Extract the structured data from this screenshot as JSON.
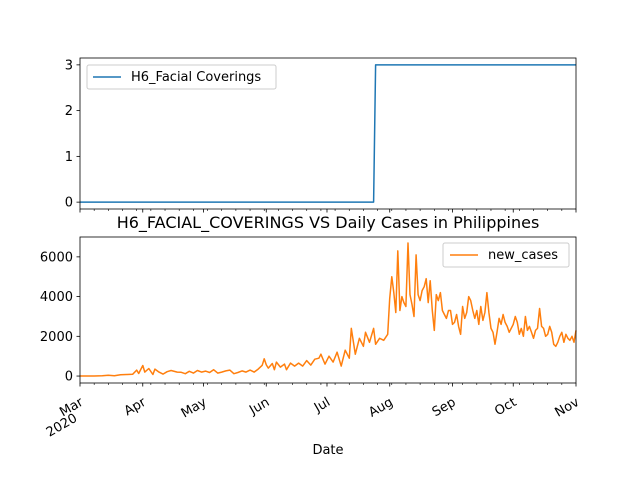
{
  "chart_data": [
    {
      "type": "line",
      "title": "",
      "xlabel": "",
      "ylabel": "",
      "xlim": [
        "2020-03-01",
        "2020-11-01"
      ],
      "ylim": [
        -0.15,
        3.15
      ],
      "y_ticks": [
        0,
        1,
        2,
        3
      ],
      "legend_location": "upper-left",
      "grid": false,
      "series": [
        {
          "name": "H6_Facial Coverings",
          "color": "#1f77b4",
          "points": [
            [
              "2020-03-01",
              0
            ],
            [
              "2020-07-24",
              0
            ],
            [
              "2020-07-25",
              3
            ],
            [
              "2020-11-01",
              3
            ]
          ]
        }
      ]
    },
    {
      "type": "line",
      "title": "H6_FACIAL_COVERINGS VS Daily Cases in Philippines",
      "xlabel": "Date",
      "ylabel": "",
      "xlim": [
        "2020-03-01",
        "2020-11-01"
      ],
      "ylim": [
        -350,
        7000
      ],
      "y_ticks": [
        0,
        2000,
        4000,
        6000
      ],
      "x_tick_labels": [
        {
          "date": "2020-03-01",
          "label": "Mar",
          "sub": "2020"
        },
        {
          "date": "2020-04-01",
          "label": "Apr",
          "sub": ""
        },
        {
          "date": "2020-05-01",
          "label": "May",
          "sub": ""
        },
        {
          "date": "2020-06-01",
          "label": "Jun",
          "sub": ""
        },
        {
          "date": "2020-07-01",
          "label": "Jul",
          "sub": ""
        },
        {
          "date": "2020-08-01",
          "label": "Aug",
          "sub": ""
        },
        {
          "date": "2020-09-01",
          "label": "Sep",
          "sub": ""
        },
        {
          "date": "2020-10-01",
          "label": "Oct",
          "sub": ""
        },
        {
          "date": "2020-11-01",
          "label": "Nov",
          "sub": ""
        }
      ],
      "legend_location": "upper-right",
      "grid": false,
      "series": [
        {
          "name": "new_cases",
          "color": "#ff7f0e",
          "points": [
            [
              "2020-03-01",
              0
            ],
            [
              "2020-03-08",
              2
            ],
            [
              "2020-03-12",
              15
            ],
            [
              "2020-03-15",
              40
            ],
            [
              "2020-03-18",
              20
            ],
            [
              "2020-03-21",
              70
            ],
            [
              "2020-03-24",
              80
            ],
            [
              "2020-03-27",
              90
            ],
            [
              "2020-03-29",
              300
            ],
            [
              "2020-03-30",
              130
            ],
            [
              "2020-04-01",
              530
            ],
            [
              "2020-04-02",
              200
            ],
            [
              "2020-04-04",
              380
            ],
            [
              "2020-04-06",
              80
            ],
            [
              "2020-04-07",
              350
            ],
            [
              "2020-04-09",
              200
            ],
            [
              "2020-04-11",
              100
            ],
            [
              "2020-04-13",
              220
            ],
            [
              "2020-04-15",
              280
            ],
            [
              "2020-04-18",
              200
            ],
            [
              "2020-04-20",
              190
            ],
            [
              "2020-04-22",
              120
            ],
            [
              "2020-04-24",
              240
            ],
            [
              "2020-04-26",
              150
            ],
            [
              "2020-04-28",
              280
            ],
            [
              "2020-04-30",
              200
            ],
            [
              "2020-05-02",
              250
            ],
            [
              "2020-05-04",
              180
            ],
            [
              "2020-05-06",
              320
            ],
            [
              "2020-05-08",
              150
            ],
            [
              "2020-05-10",
              200
            ],
            [
              "2020-05-12",
              260
            ],
            [
              "2020-05-14",
              300
            ],
            [
              "2020-05-16",
              120
            ],
            [
              "2020-05-18",
              180
            ],
            [
              "2020-05-20",
              260
            ],
            [
              "2020-05-22",
              200
            ],
            [
              "2020-05-24",
              300
            ],
            [
              "2020-05-26",
              200
            ],
            [
              "2020-05-28",
              350
            ],
            [
              "2020-05-30",
              540
            ],
            [
              "2020-05-31",
              870
            ],
            [
              "2020-06-01",
              560
            ],
            [
              "2020-06-02",
              400
            ],
            [
              "2020-06-04",
              630
            ],
            [
              "2020-06-05",
              320
            ],
            [
              "2020-06-06",
              700
            ],
            [
              "2020-06-08",
              450
            ],
            [
              "2020-06-10",
              600
            ],
            [
              "2020-06-11",
              320
            ],
            [
              "2020-06-13",
              650
            ],
            [
              "2020-06-15",
              500
            ],
            [
              "2020-06-17",
              650
            ],
            [
              "2020-06-19",
              500
            ],
            [
              "2020-06-21",
              780
            ],
            [
              "2020-06-23",
              550
            ],
            [
              "2020-06-25",
              850
            ],
            [
              "2020-06-27",
              900
            ],
            [
              "2020-06-28",
              1100
            ],
            [
              "2020-06-30",
              600
            ],
            [
              "2020-07-02",
              1000
            ],
            [
              "2020-07-04",
              700
            ],
            [
              "2020-07-06",
              1200
            ],
            [
              "2020-07-08",
              500
            ],
            [
              "2020-07-10",
              1300
            ],
            [
              "2020-07-12",
              900
            ],
            [
              "2020-07-13",
              2400
            ],
            [
              "2020-07-15",
              1100
            ],
            [
              "2020-07-17",
              1900
            ],
            [
              "2020-07-19",
              1500
            ],
            [
              "2020-07-20",
              2200
            ],
            [
              "2020-07-22",
              1700
            ],
            [
              "2020-07-24",
              2400
            ],
            [
              "2020-07-25",
              1600
            ],
            [
              "2020-07-27",
              1900
            ],
            [
              "2020-07-29",
              1800
            ],
            [
              "2020-07-31",
              2100
            ],
            [
              "2020-08-01",
              3900
            ],
            [
              "2020-08-02",
              5000
            ],
            [
              "2020-08-03",
              4200
            ],
            [
              "2020-08-04",
              3200
            ],
            [
              "2020-08-05",
              6300
            ],
            [
              "2020-08-06",
              3300
            ],
            [
              "2020-08-07",
              4000
            ],
            [
              "2020-08-08",
              3700
            ],
            [
              "2020-08-09",
              3500
            ],
            [
              "2020-08-10",
              6700
            ],
            [
              "2020-08-11",
              4100
            ],
            [
              "2020-08-12",
              3600
            ],
            [
              "2020-08-13",
              3000
            ],
            [
              "2020-08-14",
              6100
            ],
            [
              "2020-08-15",
              4100
            ],
            [
              "2020-08-16",
              3800
            ],
            [
              "2020-08-17",
              4300
            ],
            [
              "2020-08-18",
              4500
            ],
            [
              "2020-08-19",
              4900
            ],
            [
              "2020-08-20",
              3700
            ],
            [
              "2020-08-21",
              4800
            ],
            [
              "2020-08-22",
              3300
            ],
            [
              "2020-08-23",
              2300
            ],
            [
              "2020-08-24",
              4100
            ],
            [
              "2020-08-25",
              3800
            ],
            [
              "2020-08-26",
              4200
            ],
            [
              "2020-08-27",
              3300
            ],
            [
              "2020-08-28",
              3100
            ],
            [
              "2020-08-29",
              2900
            ],
            [
              "2020-08-30",
              3300
            ],
            [
              "2020-08-31",
              3300
            ],
            [
              "2020-09-01",
              2600
            ],
            [
              "2020-09-02",
              2700
            ],
            [
              "2020-09-03",
              3100
            ],
            [
              "2020-09-04",
              2500
            ],
            [
              "2020-09-05",
              2100
            ],
            [
              "2020-09-06",
              3500
            ],
            [
              "2020-09-07",
              2900
            ],
            [
              "2020-09-08",
              3200
            ],
            [
              "2020-09-09",
              4000
            ],
            [
              "2020-09-10",
              3800
            ],
            [
              "2020-09-11",
              3300
            ],
            [
              "2020-09-12",
              2900
            ],
            [
              "2020-09-13",
              3300
            ],
            [
              "2020-09-14",
              2600
            ],
            [
              "2020-09-15",
              3500
            ],
            [
              "2020-09-16",
              2800
            ],
            [
              "2020-09-17",
              3200
            ],
            [
              "2020-09-18",
              4200
            ],
            [
              "2020-09-19",
              3200
            ],
            [
              "2020-09-20",
              2400
            ],
            [
              "2020-09-21",
              2200
            ],
            [
              "2020-09-22",
              1600
            ],
            [
              "2020-09-23",
              2200
            ],
            [
              "2020-09-24",
              2900
            ],
            [
              "2020-09-25",
              2600
            ],
            [
              "2020-09-26",
              3100
            ],
            [
              "2020-09-27",
              2700
            ],
            [
              "2020-09-28",
              2500
            ],
            [
              "2020-09-29",
              2200
            ],
            [
              "2020-09-30",
              2400
            ],
            [
              "2020-10-01",
              2600
            ],
            [
              "2020-10-02",
              3000
            ],
            [
              "2020-10-03",
              2700
            ],
            [
              "2020-10-04",
              2100
            ],
            [
              "2020-10-05",
              2400
            ],
            [
              "2020-10-06",
              2000
            ],
            [
              "2020-10-07",
              3000
            ],
            [
              "2020-10-08",
              2300
            ],
            [
              "2020-10-09",
              2500
            ],
            [
              "2020-10-10",
              2200
            ],
            [
              "2020-10-11",
              1900
            ],
            [
              "2020-10-12",
              2300
            ],
            [
              "2020-10-13",
              2400
            ],
            [
              "2020-10-14",
              3400
            ],
            [
              "2020-10-15",
              2500
            ],
            [
              "2020-10-16",
              2400
            ],
            [
              "2020-10-17",
              2000
            ],
            [
              "2020-10-18",
              2100
            ],
            [
              "2020-10-19",
              2500
            ],
            [
              "2020-10-20",
              2200
            ],
            [
              "2020-10-21",
              1600
            ],
            [
              "2020-10-22",
              1500
            ],
            [
              "2020-10-23",
              1700
            ],
            [
              "2020-10-24",
              2000
            ],
            [
              "2020-10-25",
              2200
            ],
            [
              "2020-10-26",
              1700
            ],
            [
              "2020-10-27",
              2100
            ],
            [
              "2020-10-28",
              1900
            ],
            [
              "2020-10-29",
              1800
            ],
            [
              "2020-10-30",
              2000
            ],
            [
              "2020-10-31",
              1700
            ],
            [
              "2020-11-01",
              2300
            ]
          ]
        }
      ]
    }
  ]
}
